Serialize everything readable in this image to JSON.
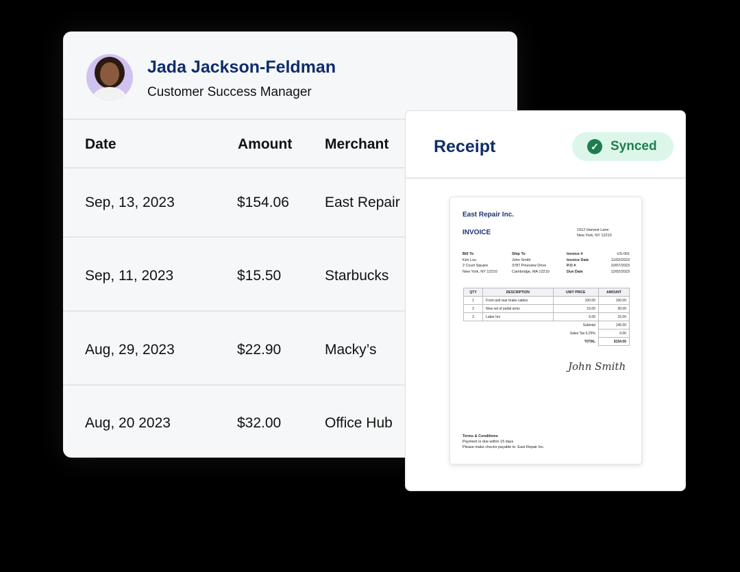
{
  "profile": {
    "name": "Jada Jackson-Feldman",
    "role": "Customer Success Manager"
  },
  "table": {
    "headers": [
      "Date",
      "Amount",
      "Merchant"
    ],
    "rows": [
      [
        "Sep, 13, 2023",
        "$154.06",
        "East Repair"
      ],
      [
        "Sep, 11, 2023",
        "$15.50",
        "Starbucks"
      ],
      [
        "Aug, 29, 2023",
        "$22.90",
        "Macky’s"
      ],
      [
        "Aug, 20 2023",
        "$32.00",
        "Office Hub"
      ]
    ]
  },
  "receipt": {
    "title": "Receipt",
    "status": "Synced",
    "status_color": "#1e7d4f",
    "invoice": {
      "company": "East Repair Inc.",
      "title": "INVOICE",
      "address": [
        "1912 Harvest Lane",
        "New York, NY 12210"
      ],
      "bill_to_label": "Bill To",
      "bill_to": [
        "Kim Lou",
        "2 Court Square",
        "New York, NY 12210"
      ],
      "ship_to_label": "Ship To",
      "ship_to": [
        "John Smith",
        "3787 Pineview Drive",
        "Cambridge, MA 12210"
      ],
      "meta": [
        [
          "Invoice #",
          "US-001"
        ],
        [
          "Invoice Date",
          "11/02/2023"
        ],
        [
          "P.O #",
          "10/07/2023"
        ],
        [
          "Due Date",
          "12/02/2023"
        ]
      ],
      "columns": [
        "QTY",
        "DESCRIPTION",
        "UNIT PRICE",
        "AMOUNT"
      ],
      "items": [
        [
          "1",
          "Front and rear brake cables",
          "100.00",
          "100.00"
        ],
        [
          "2",
          "New set of pedal arms",
          "15.00",
          "30.00"
        ],
        [
          "3",
          "Labor hrs",
          "5.00",
          "15.00"
        ]
      ],
      "totals": [
        [
          "Subtotal",
          "145.00"
        ],
        [
          "Sales Tax 6.25%",
          "9.06"
        ],
        [
          "TOTAL",
          "$154.06"
        ]
      ],
      "signature": "John Smith",
      "terms_title": "Terms & Conditions",
      "terms": [
        "Payment is due within 15 days",
        "Please make checks payable to: East Repair Inc."
      ]
    }
  }
}
